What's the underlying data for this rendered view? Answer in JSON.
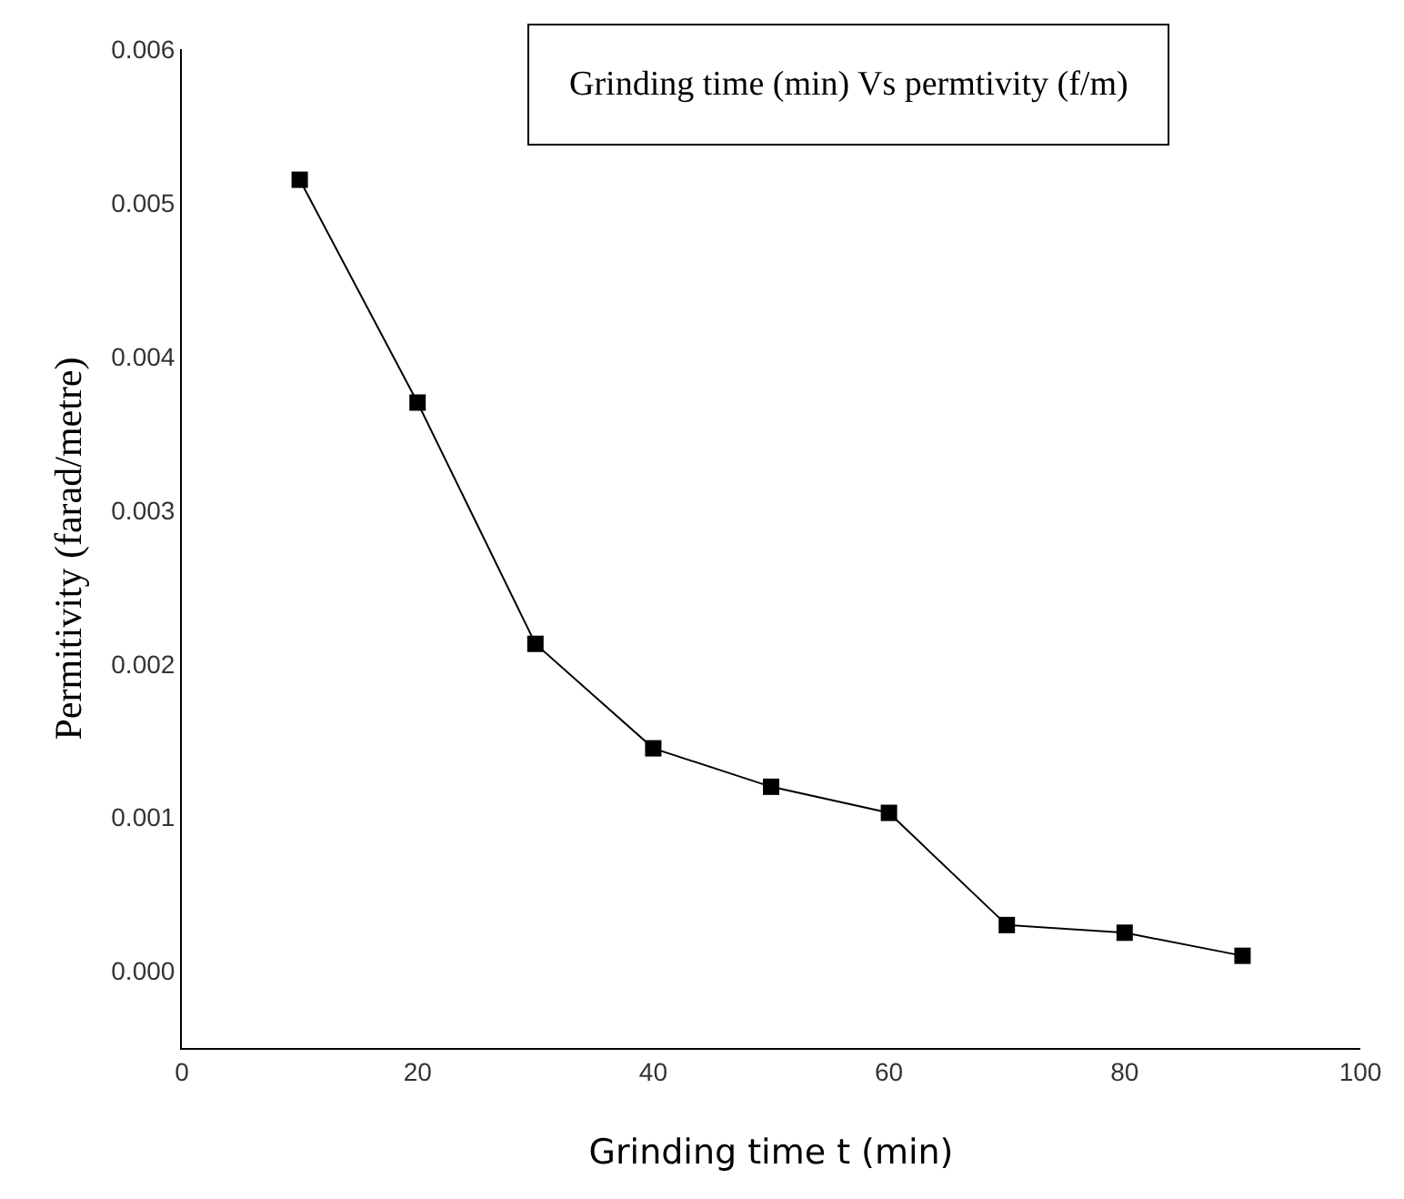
{
  "chart_data": {
    "type": "line",
    "title": "Grinding time (min) Vs permtivity (f/m)",
    "xlabel": "Grinding time t (min)",
    "ylabel": "Permitivity (farad/metre)",
    "x": [
      10,
      20,
      30,
      40,
      50,
      60,
      70,
      80,
      90
    ],
    "series": [
      {
        "color": "#000000",
        "values": [
          0.00515,
          0.0037,
          0.00213,
          0.00145,
          0.0012,
          0.00103,
          0.0003,
          0.00025,
          0.0001
        ]
      }
    ],
    "xlim": [
      0,
      100
    ],
    "xticks": [
      0,
      20,
      40,
      60,
      80,
      100
    ],
    "ylim": [
      -0.0005,
      0.006
    ],
    "yticks": [
      {
        "value": 0,
        "label": "0.000"
      },
      0.001,
      0.002,
      0.003,
      0.004,
      0.005,
      0.006
    ],
    "legend": false,
    "marker": "square",
    "line_style": "solid"
  }
}
